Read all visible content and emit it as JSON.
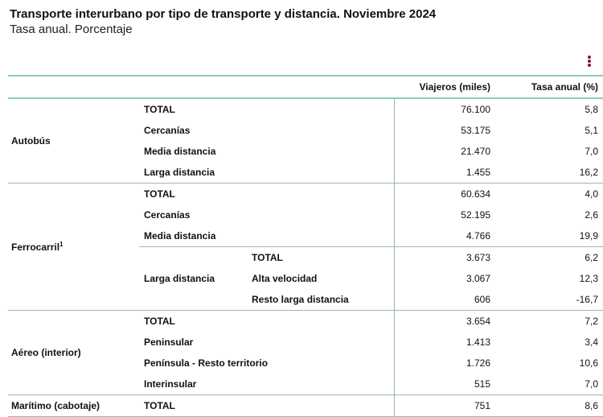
{
  "title": "Transporte interurbano por tipo de transporte y distancia. Noviembre 2024",
  "subtitle": "Tasa anual. Porcentaje",
  "menu_icon": "vertical-dots-icon",
  "accent_color": "#8a1538",
  "rule_color": "#8ec9bf",
  "columns": {
    "viajeros": "Viajeros (miles)",
    "tasa": "Tasa anual (%)"
  },
  "groups": {
    "autobus": {
      "label": "Autobús",
      "rows": [
        {
          "label": "TOTAL",
          "viajeros": "76.100",
          "tasa": "5,8"
        },
        {
          "label": "Cercanías",
          "viajeros": "53.175",
          "tasa": "5,1"
        },
        {
          "label": "Media distancia",
          "viajeros": "21.470",
          "tasa": "7,0"
        },
        {
          "label": "Larga distancia",
          "viajeros": "1.455",
          "tasa": "16,2"
        }
      ]
    },
    "ferrocarril": {
      "label": "Ferrocarril",
      "note": "1",
      "rows": [
        {
          "label": "TOTAL",
          "viajeros": "60.634",
          "tasa": "4,0"
        },
        {
          "label": "Cercanías",
          "viajeros": "52.195",
          "tasa": "2,6"
        },
        {
          "label": "Media distancia",
          "viajeros": "4.766",
          "tasa": "19,9"
        }
      ],
      "larga": {
        "label": "Larga distancia",
        "rows": [
          {
            "label": "TOTAL",
            "viajeros": "3.673",
            "tasa": "6,2"
          },
          {
            "label": "Alta velocidad",
            "viajeros": "3.067",
            "tasa": "12,3"
          },
          {
            "label": "Resto larga distancia",
            "viajeros": "606",
            "tasa": "-16,7"
          }
        ]
      }
    },
    "aereo": {
      "label": "Aéreo (interior)",
      "rows": [
        {
          "label": "TOTAL",
          "viajeros": "3.654",
          "tasa": "7,2"
        },
        {
          "label": "Peninsular",
          "viajeros": "1.413",
          "tasa": "3,4"
        },
        {
          "label": "Península - Resto territorio",
          "viajeros": "1.726",
          "tasa": "10,6"
        },
        {
          "label": "Interinsular",
          "viajeros": "515",
          "tasa": "7,0"
        }
      ]
    },
    "maritimo": {
      "label": "Marítimo (cabotaje)",
      "rows": [
        {
          "label": "TOTAL",
          "viajeros": "751",
          "tasa": "8,6"
        }
      ]
    }
  }
}
